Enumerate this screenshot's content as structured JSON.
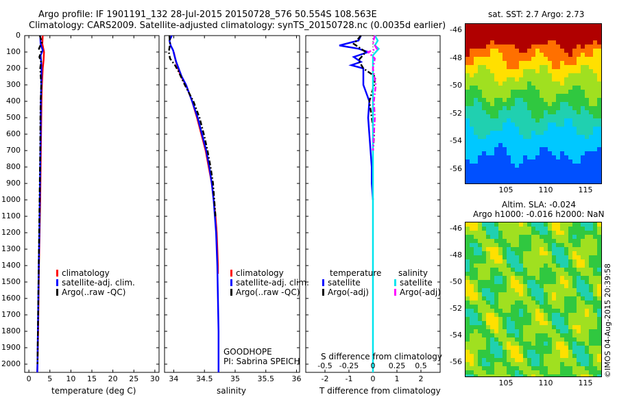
{
  "header": {
    "line1": "Argo profile: IF 1901191_132 28-Jul-2015 20150728_576 50.554S 108.563E",
    "line2": "Climatology: CARS2009. Satellite-adjusted climatology: synTS_20150728.nc (0.0035d earlier)"
  },
  "colors": {
    "climatology": "#ff0000",
    "satellite": "#0000ff",
    "argo": "#000000",
    "sal_satellite": "#00e5ee",
    "sal_argo": "#ff00ff"
  },
  "depth_ticks": [
    "0",
    "100",
    "200",
    "300",
    "400",
    "500",
    "600",
    "700",
    "800",
    "900",
    "1000",
    "1100",
    "1200",
    "1300",
    "1400",
    "1500",
    "1600",
    "1700",
    "1800",
    "1900",
    "2000"
  ],
  "panel_temp": {
    "xlabel": "temperature (deg C)",
    "xticks": [
      "0",
      "5",
      "10",
      "15",
      "20",
      "25",
      "30"
    ],
    "legend": [
      "climatology",
      "satellite-adj. clim.",
      "Argo(..raw -QC)"
    ]
  },
  "panel_sal": {
    "xlabel": "salinity",
    "xticks": [
      "34",
      "34.5",
      "35",
      "35.5",
      "36"
    ],
    "legend": [
      "climatology",
      "satellite-adj. clim.",
      "Argo(..raw -QC)"
    ],
    "program": "GOODHOPE",
    "pi": "PI: Sabrina SPEICH"
  },
  "panel_diff": {
    "top_label": "S difference from climatology",
    "top_ticks": [
      "-0.5",
      "-0.25",
      "0",
      "0.25",
      "0.5"
    ],
    "xlabel": "T difference from climatology",
    "xticks": [
      "-2",
      "-1",
      "0",
      "1",
      "2"
    ],
    "legend_temp_title": "temperature",
    "legend_sal_title": "salinity",
    "legend_temp": [
      "satellite",
      "Argo(-adj)"
    ],
    "legend_sal": [
      "satellite",
      "Argo(-adj)"
    ]
  },
  "map_sst": {
    "title": "sat. SST: 2.7 Argo: 2.73",
    "yticks": [
      "-46",
      "-48",
      "-50",
      "-52",
      "-54",
      "-56"
    ],
    "xticks": [
      "105",
      "110",
      "115"
    ]
  },
  "map_sla": {
    "title1": "Altim. SLA: -0.024",
    "title2": "Argo h1000: -0.016 h2000: NaN",
    "yticks": [
      "-46",
      "-48",
      "-50",
      "-52",
      "-54",
      "-56"
    ],
    "xticks": [
      "105",
      "110",
      "115"
    ]
  },
  "footer": {
    "stamp": "©IMOS 04-Aug-2015 20:39:58"
  },
  "chart_data": [
    {
      "type": "line",
      "xlabel": "temperature (deg C)",
      "ylabel": "",
      "xlim": [
        -1,
        31
      ],
      "ylim": [
        2050,
        0
      ],
      "series": [
        {
          "name": "climatology",
          "depth": [
            0,
            50,
            100,
            150,
            200,
            300,
            400,
            600,
            800,
            1000,
            1200,
            1400,
            1600,
            1800,
            2000,
            2050
          ],
          "values": [
            3.3,
            3.2,
            3.6,
            3.5,
            3.3,
            3.1,
            3.0,
            2.9,
            2.8,
            2.7,
            2.55,
            2.4,
            2.3,
            2.2,
            2.05,
            2.0
          ]
        },
        {
          "name": "satellite-adj. clim.",
          "depth": [
            0,
            50,
            90,
            120,
            150,
            200,
            300,
            400,
            600,
            800,
            1000,
            1200,
            1400,
            1600,
            1800,
            2000,
            2050
          ],
          "values": [
            2.7,
            2.8,
            3.3,
            2.8,
            2.9,
            3.0,
            2.95,
            2.85,
            2.8,
            2.7,
            2.6,
            2.5,
            2.35,
            2.25,
            2.15,
            2.05,
            2.0
          ]
        },
        {
          "name": "Argo(..raw -QC)",
          "depth": [
            0,
            40,
            80,
            100,
            130,
            160,
            200,
            300,
            400,
            500,
            700,
            900,
            1100,
            1300,
            1500,
            1700,
            1900,
            2000
          ],
          "values": [
            2.6,
            3.1,
            2.4,
            2.9,
            2.5,
            2.9,
            2.7,
            2.95,
            2.8,
            2.75,
            2.7,
            2.6,
            2.5,
            2.4,
            2.3,
            2.2,
            2.1,
            2.05
          ]
        }
      ]
    },
    {
      "type": "line",
      "xlabel": "salinity",
      "ylabel": "",
      "xlim": [
        33.85,
        36.05
      ],
      "ylim": [
        2050,
        0
      ],
      "series": [
        {
          "name": "climatology",
          "depth": [
            100,
            150,
            200,
            250,
            300,
            400,
            500,
            600,
            700,
            800,
            900,
            1000,
            1100,
            1200,
            1300,
            1400,
            1450
          ],
          "values": [
            34.0,
            34.03,
            34.07,
            34.12,
            34.2,
            34.3,
            34.38,
            34.45,
            34.52,
            34.57,
            34.62,
            34.65,
            34.68,
            34.7,
            34.71,
            34.72,
            34.72
          ]
        },
        {
          "name": "satellite-adj. clim.",
          "depth": [
            0,
            30,
            60,
            90,
            120,
            160,
            200,
            250,
            300,
            400,
            500,
            600,
            700,
            800,
            900,
            1000,
            1200,
            1400,
            1600,
            1800,
            2050
          ],
          "values": [
            33.97,
            33.93,
            33.95,
            33.99,
            34.01,
            34.04,
            34.08,
            34.13,
            34.2,
            34.3,
            34.39,
            34.46,
            34.53,
            34.58,
            34.62,
            34.65,
            34.69,
            34.71,
            34.72,
            34.73,
            34.73
          ]
        },
        {
          "name": "Argo(..raw -QC)",
          "depth": [
            0,
            50,
            100,
            140,
            180,
            220,
            260,
            300,
            400,
            500,
            600,
            700,
            800,
            900,
            1000,
            1100
          ],
          "values": [
            33.93,
            33.94,
            33.92,
            33.94,
            34.02,
            34.08,
            34.13,
            34.18,
            34.32,
            34.42,
            34.49,
            34.55,
            34.6,
            34.64,
            34.66,
            34.68
          ]
        }
      ]
    },
    {
      "type": "line",
      "xlabel": "T difference from climatology",
      "x2label": "S difference from climatology",
      "ylabel": "",
      "xlim": [
        -2.8,
        2.8
      ],
      "x2lim": [
        -0.7,
        0.7
      ],
      "ylim": [
        2050,
        0
      ],
      "series": [
        {
          "name": "temperature satellite",
          "depth": [
            0,
            30,
            60,
            80,
            100,
            130,
            160,
            180,
            200,
            300,
            400,
            500,
            600,
            700,
            800,
            900,
            1000
          ],
          "values": [
            -0.5,
            -0.6,
            -1.4,
            -0.6,
            -0.2,
            -0.8,
            -0.5,
            -0.9,
            -0.4,
            -0.4,
            -0.15,
            -0.2,
            -0.15,
            -0.1,
            -0.05,
            -0.05,
            0.0
          ]
        },
        {
          "name": "temperature Argo(-adj)",
          "depth": [
            0,
            50,
            100,
            150,
            200,
            250,
            300,
            400,
            500,
            600,
            700
          ],
          "values": [
            -0.5,
            -0.8,
            -0.3,
            -0.6,
            -0.4,
            0.1,
            0.05,
            -0.15,
            -0.05,
            0.05,
            0.0
          ]
        },
        {
          "name": "salinity satellite",
          "depth": [
            0,
            30,
            60,
            80,
            120,
            200,
            400,
            800,
            1200,
            2050
          ],
          "values": [
            0.02,
            0.05,
            0.02,
            0.06,
            0.0,
            0.0,
            0.0,
            0.0,
            0.0,
            0.0
          ]
        },
        {
          "name": "salinity Argo(-adj)",
          "depth": [
            0,
            40,
            80,
            100,
            140,
            200,
            300,
            400,
            500,
            600,
            700
          ],
          "values": [
            0.02,
            0.0,
            0.04,
            -0.05,
            0.02,
            0.0,
            0.03,
            0.01,
            0.02,
            0.01,
            0.0
          ]
        }
      ]
    },
    {
      "type": "heatmap",
      "title": "sat. SST: 2.7 Argo: 2.73",
      "xlim": [
        100.5,
        116.5
      ],
      "ylim": [
        -56.5,
        -45
      ]
    },
    {
      "type": "heatmap",
      "title": "Altim. SLA: -0.024",
      "xlim": [
        100.5,
        116.5
      ],
      "ylim": [
        -56.5,
        -45
      ]
    }
  ]
}
